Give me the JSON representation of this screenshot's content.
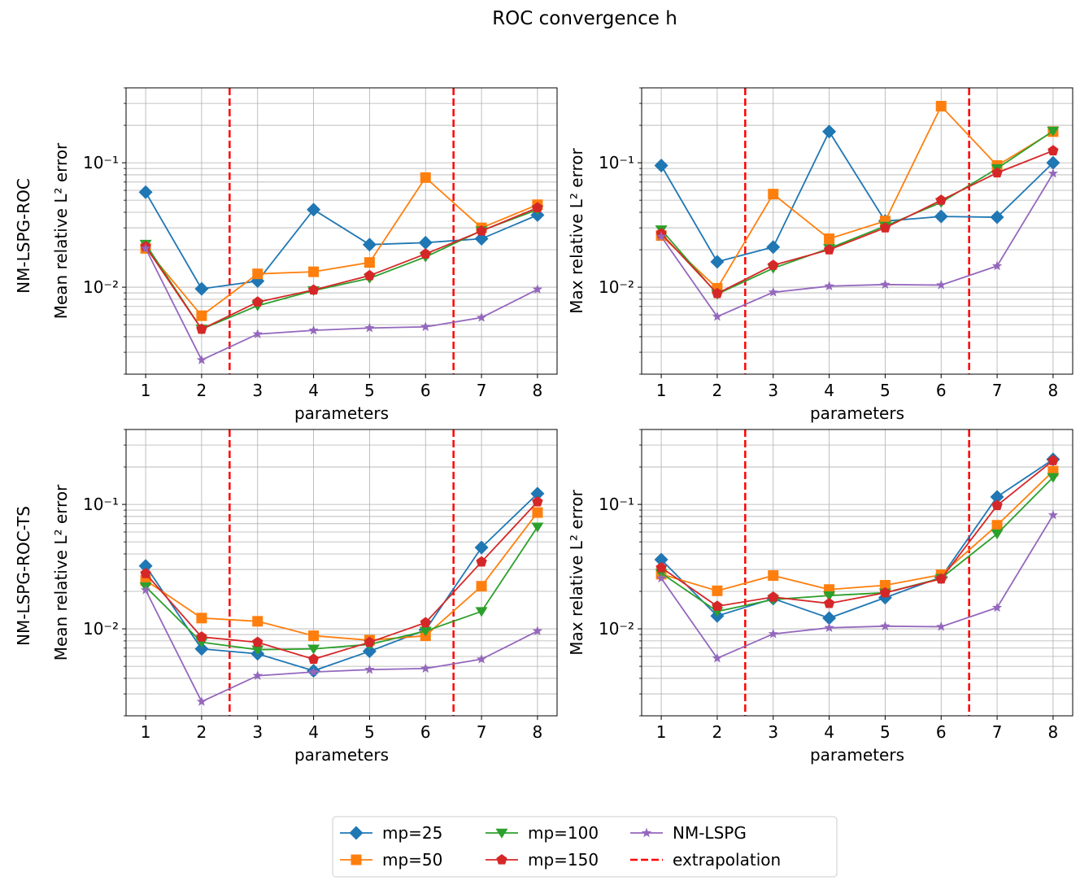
{
  "figure": {
    "title": "ROC convergence h",
    "row_labels": [
      "NM-LSPG-ROC",
      "NM-LSPG-ROC-TS"
    ]
  },
  "legend": {
    "items": [
      {
        "label": "mp=25",
        "color": "#1f77b4",
        "marker": "diamond"
      },
      {
        "label": "mp=50",
        "color": "#ff7f0e",
        "marker": "square"
      },
      {
        "label": "mp=100",
        "color": "#2ca02c",
        "marker": "triangle-down"
      },
      {
        "label": "mp=150",
        "color": "#d62728",
        "marker": "pentagon"
      },
      {
        "label": "NM-LSPG",
        "color": "#9467bd",
        "marker": "star"
      },
      {
        "label": "extrapolation",
        "color": "#ff0000",
        "marker": "dashed-line"
      }
    ]
  },
  "chart_data": [
    {
      "type": "line",
      "title": "",
      "xlabel": "parameters",
      "ylabel": "Mean relative L² error",
      "yscale": "log",
      "ylim": [
        0.002,
        0.4
      ],
      "xlim": [
        0.65,
        8.35
      ],
      "xticks": [
        "1",
        "2",
        "3",
        "4",
        "5",
        "6",
        "7",
        "8"
      ],
      "yticks": [
        {
          "value": 0.01,
          "label": "10⁻²"
        },
        {
          "value": 0.1,
          "label": "10⁻¹"
        }
      ],
      "extrapolation_x": [
        2.5,
        6.5
      ],
      "x": [
        1,
        2,
        3,
        4,
        5,
        6,
        7,
        8
      ],
      "series": [
        {
          "name": "mp=25",
          "values": [
            0.058,
            0.0097,
            0.0112,
            0.042,
            0.022,
            0.0228,
            0.0245,
            0.038
          ]
        },
        {
          "name": "mp=50",
          "values": [
            0.0205,
            0.0059,
            0.0128,
            0.0133,
            0.0158,
            0.076,
            0.03,
            0.046
          ]
        },
        {
          "name": "mp=100",
          "values": [
            0.0222,
            0.0046,
            0.0071,
            0.0094,
            0.0118,
            0.0175,
            0.0285,
            0.042
          ]
        },
        {
          "name": "mp=150",
          "values": [
            0.0212,
            0.0046,
            0.0076,
            0.0095,
            0.0124,
            0.0185,
            0.0283,
            0.0435
          ]
        },
        {
          "name": "NM-LSPG",
          "values": [
            0.0205,
            0.0026,
            0.0042,
            0.0045,
            0.0047,
            0.0048,
            0.0057,
            0.0096
          ]
        }
      ]
    },
    {
      "type": "line",
      "title": "",
      "xlabel": "parameters",
      "ylabel": "Max relative L² error",
      "yscale": "log",
      "ylim": [
        0.002,
        0.4
      ],
      "xlim": [
        0.65,
        8.35
      ],
      "xticks": [
        "1",
        "2",
        "3",
        "4",
        "5",
        "6",
        "7",
        "8"
      ],
      "yticks": [
        {
          "value": 0.01,
          "label": "10⁻²"
        },
        {
          "value": 0.1,
          "label": "10⁻¹"
        }
      ],
      "extrapolation_x": [
        2.5,
        6.5
      ],
      "x": [
        1,
        2,
        3,
        4,
        5,
        6,
        7,
        8
      ],
      "series": [
        {
          "name": "mp=25",
          "values": [
            0.095,
            0.016,
            0.021,
            0.178,
            0.034,
            0.037,
            0.0365,
            0.1
          ]
        },
        {
          "name": "mp=50",
          "values": [
            0.026,
            0.0098,
            0.056,
            0.0245,
            0.034,
            0.285,
            0.095,
            0.178
          ]
        },
        {
          "name": "mp=100",
          "values": [
            0.029,
            0.0088,
            0.0142,
            0.0205,
            0.031,
            0.048,
            0.09,
            0.18
          ]
        },
        {
          "name": "mp=150",
          "values": [
            0.027,
            0.0089,
            0.015,
            0.02,
            0.03,
            0.05,
            0.083,
            0.125
          ]
        },
        {
          "name": "NM-LSPG",
          "values": [
            0.0255,
            0.0058,
            0.0091,
            0.0102,
            0.0105,
            0.0104,
            0.0148,
            0.082
          ]
        }
      ]
    },
    {
      "type": "line",
      "title": "",
      "xlabel": "parameters",
      "ylabel": "Mean relative L² error",
      "yscale": "log",
      "ylim": [
        0.002,
        0.4
      ],
      "xlim": [
        0.65,
        8.35
      ],
      "xticks": [
        "1",
        "2",
        "3",
        "4",
        "5",
        "6",
        "7",
        "8"
      ],
      "yticks": [
        {
          "value": 0.01,
          "label": "10⁻²"
        },
        {
          "value": 0.1,
          "label": "10⁻¹"
        }
      ],
      "extrapolation_x": [
        2.5,
        6.5
      ],
      "x": [
        1,
        2,
        3,
        4,
        5,
        6,
        7,
        8
      ],
      "series": [
        {
          "name": "mp=25",
          "values": [
            0.032,
            0.0069,
            0.0063,
            0.0046,
            0.0066,
            0.0098,
            0.045,
            0.122
          ]
        },
        {
          "name": "mp=50",
          "values": [
            0.0245,
            0.0122,
            0.0115,
            0.0088,
            0.0081,
            0.0088,
            0.022,
            0.086
          ]
        },
        {
          "name": "mp=100",
          "values": [
            0.0218,
            0.0078,
            0.0068,
            0.0069,
            0.0075,
            0.0096,
            0.0138,
            0.066
          ]
        },
        {
          "name": "mp=150",
          "values": [
            0.0278,
            0.0086,
            0.0078,
            0.0057,
            0.0078,
            0.0112,
            0.0345,
            0.105
          ]
        },
        {
          "name": "NM-LSPG",
          "values": [
            0.0205,
            0.0026,
            0.0042,
            0.0045,
            0.0047,
            0.0048,
            0.0057,
            0.0096
          ]
        }
      ]
    },
    {
      "type": "line",
      "title": "",
      "xlabel": "parameters",
      "ylabel": "Max relative L² error",
      "yscale": "log",
      "ylim": [
        0.002,
        0.4
      ],
      "xlim": [
        0.65,
        8.35
      ],
      "xticks": [
        "1",
        "2",
        "3",
        "4",
        "5",
        "6",
        "7",
        "8"
      ],
      "yticks": [
        {
          "value": 0.01,
          "label": "10⁻²"
        },
        {
          "value": 0.1,
          "label": "10⁻¹"
        }
      ],
      "extrapolation_x": [
        2.5,
        6.5
      ],
      "x": [
        1,
        2,
        3,
        4,
        5,
        6,
        7,
        8
      ],
      "series": [
        {
          "name": "mp=25",
          "values": [
            0.036,
            0.0127,
            0.0175,
            0.0122,
            0.0178,
            0.026,
            0.115,
            0.23
          ]
        },
        {
          "name": "mp=50",
          "values": [
            0.0275,
            0.0202,
            0.0268,
            0.0207,
            0.0224,
            0.0272,
            0.068,
            0.185
          ]
        },
        {
          "name": "mp=100",
          "values": [
            0.028,
            0.0138,
            0.0172,
            0.0185,
            0.0195,
            0.0255,
            0.058,
            0.165
          ]
        },
        {
          "name": "mp=150",
          "values": [
            0.031,
            0.0152,
            0.018,
            0.016,
            0.0195,
            0.0252,
            0.098,
            0.225
          ]
        },
        {
          "name": "NM-LSPG",
          "values": [
            0.0255,
            0.0058,
            0.0091,
            0.0102,
            0.0105,
            0.0104,
            0.0148,
            0.082
          ]
        }
      ]
    }
  ]
}
